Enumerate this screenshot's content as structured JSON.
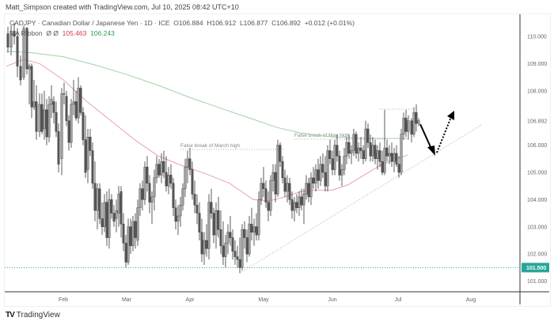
{
  "header": {
    "credit": "Matt_Simpson created with TradingView.com, Jul 10, 2025 08:42 UTC+10"
  },
  "legend": {
    "symbol_line": "CADJPY · Canadian Dollar / Japanese Yen · 1D · ICE",
    "open": "O106.884",
    "high": "H106.912",
    "low": "L106.877",
    "close": "C106.892",
    "change": "+0.012 (+0.01%)",
    "indicator_name": "MA Ribbon",
    "indicator_params": "Ø  Ø",
    "ma_fast_value": "105.463",
    "ma_slow_value": "106.243"
  },
  "colors": {
    "ma_fast": "#e8a3a9",
    "ma_slow": "#9fd3a6",
    "support_line": "#26a69a",
    "current_price_label_bg": "#ffffff",
    "candle_up": "#9e9e9e",
    "candle_down": "#555555",
    "axis_border": "#333333"
  },
  "footer": {
    "brand": "TradingView"
  },
  "chart_data": {
    "type": "candlestick",
    "title": "CADJPY · Canadian Dollar / Japanese Yen · 1D · ICE",
    "xlabel": "",
    "ylabel": "",
    "ylim": [
      100.7,
      110.8
    ],
    "y_ticks": [
      "110.000",
      "109.000",
      "108.000",
      "106.000",
      "105.000",
      "104.000",
      "103.000",
      "102.000",
      "101.000"
    ],
    "x_ticks": [
      "Feb",
      "Mar",
      "Apr",
      "May",
      "Jun",
      "Jul",
      "Aug"
    ],
    "current_price_label": "106.892",
    "support_level_label": "101.500",
    "support_level": 101.5,
    "annotations": [
      {
        "text": "False break of March high",
        "price": 105.85,
        "x_start": "Apr",
        "x_end": "May"
      },
      {
        "text": "False break of May high",
        "price": 106.3,
        "x_start": "May",
        "x_end": "Jul"
      }
    ],
    "trendline": {
      "from": {
        "date": "Apr-22",
        "price": 101.3
      },
      "to": {
        "date": "Jul-31",
        "price": 106.7
      },
      "style": "dotted"
    },
    "projection_arrows": [
      {
        "from": {
          "date": "Jul-10",
          "price": 106.8
        },
        "to": {
          "date": "Jul-18",
          "price": 105.7
        },
        "style": "solid"
      },
      {
        "from": {
          "date": "Jul-18",
          "price": 105.7
        },
        "to": {
          "date": "Jul-25",
          "price": 107.4
        },
        "style": "dotted"
      }
    ],
    "series": [
      {
        "name": "MA Ribbon fast",
        "last_value": 105.463,
        "color": "#e8a3a9"
      },
      {
        "name": "MA Ribbon slow",
        "last_value": 106.243,
        "color": "#9fd3a6"
      }
    ],
    "ma_fast": [
      [
        8,
        108.9
      ],
      [
        30,
        109.15
      ],
      [
        50,
        109.0
      ],
      [
        80,
        108.4
      ],
      [
        110,
        107.6
      ],
      [
        140,
        106.9
      ],
      [
        170,
        106.2
      ],
      [
        200,
        105.6
      ],
      [
        230,
        105.25
      ],
      [
        260,
        104.95
      ],
      [
        290,
        104.6
      ],
      [
        320,
        104.0
      ],
      [
        340,
        103.95
      ],
      [
        360,
        104.1
      ],
      [
        380,
        104.3
      ],
      [
        400,
        104.35
      ],
      [
        420,
        104.35
      ],
      [
        440,
        104.55
      ],
      [
        460,
        104.9
      ],
      [
        480,
        105.25
      ],
      [
        500,
        105.5
      ],
      [
        515,
        105.63
      ]
    ],
    "ma_slow": [
      [
        8,
        109.45
      ],
      [
        40,
        109.4
      ],
      [
        80,
        109.25
      ],
      [
        120,
        108.95
      ],
      [
        160,
        108.6
      ],
      [
        200,
        108.2
      ],
      [
        240,
        107.75
      ],
      [
        280,
        107.35
      ],
      [
        320,
        106.95
      ],
      [
        350,
        106.65
      ],
      [
        380,
        106.45
      ],
      [
        420,
        106.3
      ],
      [
        460,
        106.25
      ],
      [
        500,
        106.25
      ],
      [
        515,
        106.24
      ]
    ],
    "candles": [
      [
        10,
        110.1,
        110.35,
        109.4,
        109.6
      ],
      [
        14,
        109.6,
        110.4,
        109.3,
        110.2
      ],
      [
        18,
        110.2,
        110.5,
        109.7,
        110.0
      ],
      [
        22,
        110.0,
        110.3,
        108.5,
        108.9
      ],
      [
        26,
        108.9,
        109.3,
        108.2,
        108.4
      ],
      [
        30,
        108.5,
        110.4,
        108.4,
        110.3
      ],
      [
        34,
        110.3,
        110.35,
        108.6,
        108.8
      ],
      [
        37,
        108.8,
        109.0,
        107.5,
        108.9
      ],
      [
        40,
        108.9,
        109.0,
        107.0,
        107.4
      ],
      [
        43,
        107.4,
        108.4,
        107.3,
        107.6
      ],
      [
        46,
        107.6,
        108.2,
        106.2,
        106.5
      ],
      [
        50,
        106.5,
        107.9,
        106.3,
        107.5
      ],
      [
        53,
        107.5,
        107.9,
        106.4,
        106.5
      ],
      [
        56,
        106.6,
        108.0,
        106.2,
        107.3
      ],
      [
        59,
        107.3,
        107.7,
        106.0,
        106.3
      ],
      [
        62,
        106.3,
        107.8,
        106.1,
        107.5
      ],
      [
        65,
        107.5,
        108.2,
        107.0,
        107.7
      ],
      [
        68,
        107.6,
        107.8,
        106.8,
        107.2
      ],
      [
        71,
        107.2,
        107.6,
        106.3,
        106.5
      ],
      [
        74,
        106.5,
        106.8,
        105.0,
        105.3
      ],
      [
        78,
        105.5,
        108.1,
        104.9,
        107.9
      ],
      [
        81,
        107.9,
        108.3,
        107.5,
        107.9
      ],
      [
        84,
        107.8,
        108.0,
        106.7,
        106.9
      ],
      [
        87,
        106.9,
        107.1,
        105.8,
        106.1
      ],
      [
        90,
        106.1,
        107.7,
        105.9,
        107.5
      ],
      [
        93,
        107.5,
        108.4,
        107.1,
        107.6
      ],
      [
        96,
        107.6,
        108.0,
        106.9,
        107.0
      ],
      [
        99,
        107.0,
        108.5,
        106.8,
        108.1
      ],
      [
        102,
        108.1,
        108.2,
        107.1,
        107.2
      ],
      [
        105,
        107.2,
        107.4,
        106.0,
        106.2
      ],
      [
        108,
        106.2,
        107.1,
        104.8,
        105.0
      ],
      [
        111,
        105.1,
        106.6,
        104.6,
        106.3
      ],
      [
        114,
        106.3,
        106.6,
        105.6,
        105.8
      ],
      [
        117,
        105.8,
        106.1,
        104.4,
        104.6
      ],
      [
        120,
        104.6,
        105.4,
        103.2,
        103.6
      ],
      [
        123,
        103.6,
        104.6,
        102.9,
        104.4
      ],
      [
        126,
        104.4,
        104.6,
        103.1,
        103.3
      ],
      [
        129,
        103.3,
        103.9,
        102.7,
        103.0
      ],
      [
        132,
        103.0,
        104.2,
        102.8,
        103.9
      ],
      [
        135,
        103.9,
        104.3,
        102.3,
        102.6
      ],
      [
        138,
        102.6,
        104.4,
        102.2,
        104.0
      ],
      [
        141,
        104.0,
        104.2,
        103.3,
        103.5
      ],
      [
        144,
        103.5,
        103.8,
        103.0,
        103.2
      ],
      [
        147,
        103.3,
        104.0,
        102.8,
        103.6
      ],
      [
        150,
        103.5,
        104.5,
        103.0,
        104.2
      ],
      [
        153,
        104.3,
        104.5,
        102.6,
        103.1
      ],
      [
        156,
        103.1,
        103.5,
        102.1,
        102.4
      ],
      [
        159,
        102.4,
        102.7,
        101.5,
        101.7
      ],
      [
        162,
        101.7,
        103.3,
        101.6,
        103.0
      ],
      [
        165,
        103.0,
        103.3,
        102.0,
        102.3
      ],
      [
        168,
        102.3,
        103.4,
        102.1,
        103.2
      ],
      [
        171,
        103.2,
        103.5,
        102.2,
        102.6
      ],
      [
        174,
        102.5,
        104.0,
        102.3,
        103.7
      ],
      [
        177,
        103.7,
        104.6,
        103.4,
        104.4
      ],
      [
        180,
        104.4,
        104.7,
        103.6,
        104.0
      ],
      [
        183,
        104.0,
        105.4,
        103.8,
        105.2
      ],
      [
        186,
        105.2,
        105.6,
        104.3,
        104.6
      ],
      [
        189,
        104.6,
        104.9,
        103.5,
        103.9
      ],
      [
        192,
        103.9,
        104.3,
        103.1,
        104.1
      ],
      [
        195,
        104.1,
        105.1,
        103.6,
        104.8
      ],
      [
        198,
        104.8,
        105.6,
        104.6,
        105.3
      ],
      [
        201,
        105.3,
        105.5,
        104.8,
        104.9
      ],
      [
        204,
        104.9,
        105.7,
        104.6,
        105.4
      ],
      [
        207,
        105.4,
        105.8,
        104.8,
        105.0
      ],
      [
        210,
        105.0,
        105.6,
        104.3,
        104.5
      ],
      [
        213,
        104.5,
        105.2,
        104.2,
        104.9
      ],
      [
        216,
        104.9,
        105.3,
        104.4,
        104.6
      ],
      [
        219,
        104.6,
        104.8,
        103.4,
        103.7
      ],
      [
        222,
        103.7,
        104.0,
        102.9,
        103.2
      ],
      [
        225,
        103.2,
        103.8,
        102.7,
        103.4
      ],
      [
        228,
        103.4,
        104.1,
        103.0,
        103.8
      ],
      [
        231,
        103.8,
        104.6,
        103.6,
        104.4
      ],
      [
        234,
        104.4,
        105.5,
        104.1,
        105.2
      ],
      [
        237,
        105.2,
        105.8,
        104.6,
        105.5
      ],
      [
        240,
        105.5,
        105.9,
        104.9,
        105.1
      ],
      [
        243,
        105.1,
        105.4,
        104.0,
        104.2
      ],
      [
        246,
        104.2,
        104.7,
        103.5,
        103.8
      ],
      [
        249,
        103.8,
        104.2,
        103.1,
        103.5
      ],
      [
        252,
        103.5,
        103.9,
        102.5,
        102.8
      ],
      [
        255,
        102.8,
        103.3,
        101.7,
        102.0
      ],
      [
        258,
        102.0,
        102.8,
        101.6,
        102.5
      ],
      [
        261,
        102.5,
        103.1,
        101.9,
        102.2
      ],
      [
        264,
        102.2,
        104.2,
        101.8,
        103.9
      ],
      [
        267,
        103.9,
        104.4,
        103.3,
        103.5
      ],
      [
        270,
        103.5,
        103.7,
        102.4,
        102.7
      ],
      [
        273,
        102.7,
        103.9,
        102.2,
        103.6
      ],
      [
        276,
        103.6,
        104.1,
        102.6,
        102.9
      ],
      [
        279,
        102.9,
        103.6,
        102.0,
        102.3
      ],
      [
        282,
        102.3,
        103.2,
        101.6,
        101.9
      ],
      [
        285,
        101.9,
        102.7,
        101.5,
        102.4
      ],
      [
        288,
        102.4,
        103.1,
        102.0,
        102.8
      ],
      [
        291,
        102.8,
        103.4,
        102.3,
        102.6
      ],
      [
        294,
        102.6,
        102.9,
        101.8,
        102.1
      ],
      [
        297,
        102.1,
        102.5,
        101.6,
        101.9
      ],
      [
        300,
        101.9,
        102.3,
        101.5,
        101.8
      ],
      [
        303,
        101.8,
        102.6,
        101.3,
        101.5
      ],
      [
        306,
        101.5,
        103.1,
        101.4,
        102.9
      ],
      [
        309,
        102.9,
        103.2,
        102.2,
        102.6
      ],
      [
        312,
        102.6,
        102.9,
        101.7,
        102.0
      ],
      [
        315,
        102.0,
        103.4,
        101.9,
        103.1
      ],
      [
        318,
        103.1,
        103.7,
        102.5,
        102.8
      ],
      [
        321,
        102.8,
        103.3,
        102.3,
        103.0
      ],
      [
        324,
        103.0,
        103.5,
        102.5,
        102.7
      ],
      [
        327,
        102.7,
        104.3,
        102.5,
        104.0
      ],
      [
        330,
        104.0,
        104.8,
        103.8,
        104.6
      ],
      [
        333,
        104.6,
        105.2,
        104.1,
        104.4
      ],
      [
        336,
        104.4,
        104.7,
        103.7,
        103.9
      ],
      [
        339,
        103.9,
        104.3,
        103.2,
        103.6
      ],
      [
        342,
        103.6,
        104.9,
        103.4,
        104.7
      ],
      [
        345,
        104.7,
        105.3,
        104.3,
        105.0
      ],
      [
        348,
        105.0,
        105.3,
        103.9,
        104.2
      ],
      [
        351,
        104.2,
        106.2,
        104.1,
        106.0
      ],
      [
        354,
        106.0,
        106.1,
        105.2,
        105.4
      ],
      [
        357,
        105.4,
        105.6,
        104.6,
        104.8
      ],
      [
        360,
        104.8,
        105.1,
        104.1,
        104.3
      ],
      [
        363,
        104.3,
        104.9,
        103.9,
        104.6
      ],
      [
        366,
        104.6,
        104.8,
        103.8,
        104.0
      ],
      [
        369,
        104.0,
        104.3,
        103.3,
        103.6
      ],
      [
        372,
        103.6,
        104.1,
        103.2,
        103.9
      ],
      [
        375,
        103.9,
        104.2,
        103.5,
        103.7
      ],
      [
        378,
        103.7,
        104.3,
        103.4,
        104.1
      ],
      [
        381,
        104.1,
        104.4,
        103.6,
        103.8
      ],
      [
        384,
        103.8,
        104.4,
        103.1,
        104.2
      ],
      [
        387,
        104.2,
        104.9,
        104.0,
        104.6
      ],
      [
        390,
        104.6,
        104.8,
        103.9,
        104.1
      ],
      [
        393,
        104.1,
        105.0,
        103.8,
        104.8
      ],
      [
        396,
        104.8,
        105.2,
        104.4,
        104.6
      ],
      [
        399,
        104.6,
        105.3,
        104.3,
        105.1
      ],
      [
        402,
        105.1,
        105.5,
        104.4,
        104.7
      ],
      [
        405,
        104.7,
        105.6,
        104.5,
        105.3
      ],
      [
        408,
        105.3,
        105.7,
        104.8,
        105.0
      ],
      [
        411,
        105.0,
        105.6,
        104.3,
        104.5
      ],
      [
        414,
        104.5,
        106.0,
        104.3,
        105.8
      ],
      [
        417,
        105.8,
        106.2,
        105.3,
        105.5
      ],
      [
        420,
        105.5,
        105.8,
        104.9,
        105.1
      ],
      [
        423,
        105.1,
        106.2,
        104.9,
        106.0
      ],
      [
        426,
        106.0,
        106.4,
        105.4,
        105.6
      ],
      [
        429,
        105.6,
        105.8,
        104.7,
        104.9
      ],
      [
        432,
        104.9,
        105.3,
        104.5,
        105.1
      ],
      [
        435,
        105.1,
        105.9,
        104.9,
        105.6
      ],
      [
        438,
        105.6,
        106.3,
        105.3,
        106.1
      ],
      [
        441,
        106.1,
        106.4,
        105.5,
        105.7
      ],
      [
        444,
        105.7,
        106.0,
        105.3,
        105.8
      ],
      [
        447,
        105.8,
        106.6,
        105.6,
        106.4
      ],
      [
        450,
        106.4,
        106.5,
        105.5,
        105.7
      ],
      [
        453,
        105.7,
        106.1,
        105.4,
        105.9
      ],
      [
        456,
        105.9,
        106.3,
        105.5,
        105.8
      ],
      [
        459,
        105.8,
        106.0,
        105.3,
        105.5
      ],
      [
        462,
        105.5,
        106.9,
        105.4,
        106.6
      ],
      [
        465,
        106.6,
        106.8,
        105.9,
        106.1
      ],
      [
        468,
        106.1,
        106.4,
        105.4,
        105.6
      ],
      [
        471,
        105.6,
        106.3,
        105.4,
        106.0
      ],
      [
        474,
        106.0,
        106.2,
        105.3,
        105.5
      ],
      [
        477,
        105.5,
        106.0,
        105.1,
        105.8
      ],
      [
        480,
        105.8,
        106.1,
        105.2,
        105.4
      ],
      [
        483,
        105.4,
        105.8,
        104.9,
        105.0
      ],
      [
        486,
        105.0,
        107.3,
        104.9,
        105.9
      ],
      [
        489,
        105.9,
        106.2,
        105.4,
        105.6
      ],
      [
        492,
        105.6,
        106.0,
        105.3,
        105.7
      ],
      [
        495,
        105.7,
        106.1,
        105.2,
        105.4
      ],
      [
        498,
        105.4,
        105.9,
        105.0,
        105.7
      ],
      [
        501,
        105.7,
        106.0,
        105.2,
        105.3
      ],
      [
        504,
        105.3,
        105.6,
        104.8,
        105.0
      ],
      [
        507,
        105.0,
        106.6,
        104.9,
        106.4
      ],
      [
        510,
        106.4,
        107.2,
        106.2,
        107.0
      ],
      [
        513,
        107.0,
        107.3,
        106.3,
        106.5
      ],
      [
        516,
        106.5,
        107.1,
        106.2,
        106.9
      ],
      [
        520,
        106.9,
        107.0,
        106.1,
        106.4
      ],
      [
        523,
        106.4,
        107.4,
        106.3,
        107.2
      ],
      [
        526,
        107.2,
        107.5,
        106.5,
        106.8
      ],
      [
        529,
        106.8,
        107.0,
        106.7,
        106.9
      ]
    ]
  }
}
